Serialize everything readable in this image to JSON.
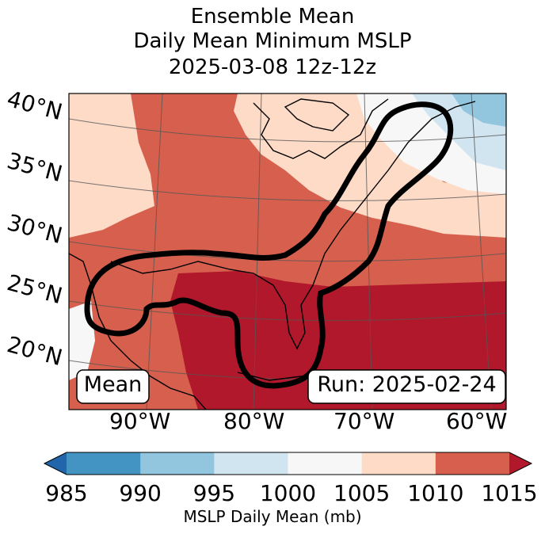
{
  "title": {
    "line1": "Ensemble Mean",
    "line2": "Daily Mean Minimum MSLP",
    "line3": "2025-03-08 12z-12z"
  },
  "map": {
    "lat_labels": [
      "40°N",
      "35°N",
      "30°N",
      "25°N",
      "20°N"
    ],
    "lon_labels": [
      "90°W",
      "80°W",
      "70°W",
      "60°W"
    ],
    "mean_box": "Mean",
    "run_box": "Run: 2025-02-24"
  },
  "colorbar": {
    "ticks": [
      "985",
      "990",
      "995",
      "1000",
      "1005",
      "1010",
      "1015"
    ],
    "label": "MSLP Daily Mean (mb)",
    "colors": [
      "#2166ac",
      "#4393c3",
      "#92c5de",
      "#d1e5f0",
      "#f7f7f7",
      "#fddbc7",
      "#d6604d",
      "#b2182b"
    ]
  }
}
